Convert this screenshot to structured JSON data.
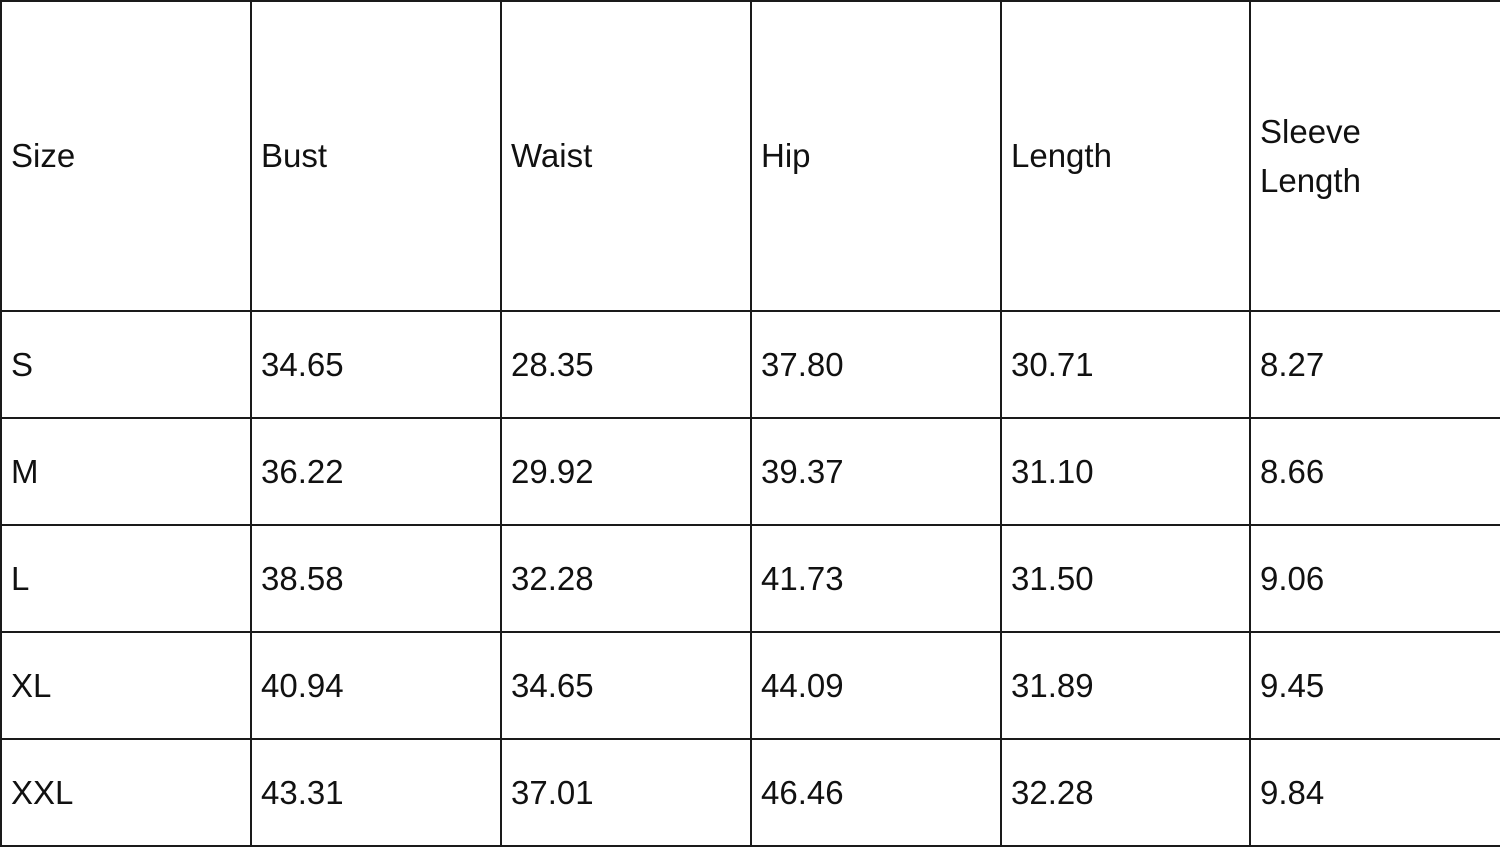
{
  "table": {
    "headers": [
      "Size",
      "Bust",
      "Waist",
      "Hip",
      "Length",
      "Sleeve Length"
    ],
    "rows": [
      [
        "S",
        "34.65",
        "28.35",
        "37.80",
        "30.71",
        "8.27"
      ],
      [
        "M",
        "36.22",
        "29.92",
        "39.37",
        "31.10",
        "8.66"
      ],
      [
        "L",
        "38.58",
        "32.28",
        "41.73",
        "31.50",
        "9.06"
      ],
      [
        "XL",
        "40.94",
        "34.65",
        "44.09",
        "31.89",
        "9.45"
      ],
      [
        "XXL",
        "43.31",
        "37.01",
        "46.46",
        "32.28",
        "9.84"
      ]
    ]
  }
}
